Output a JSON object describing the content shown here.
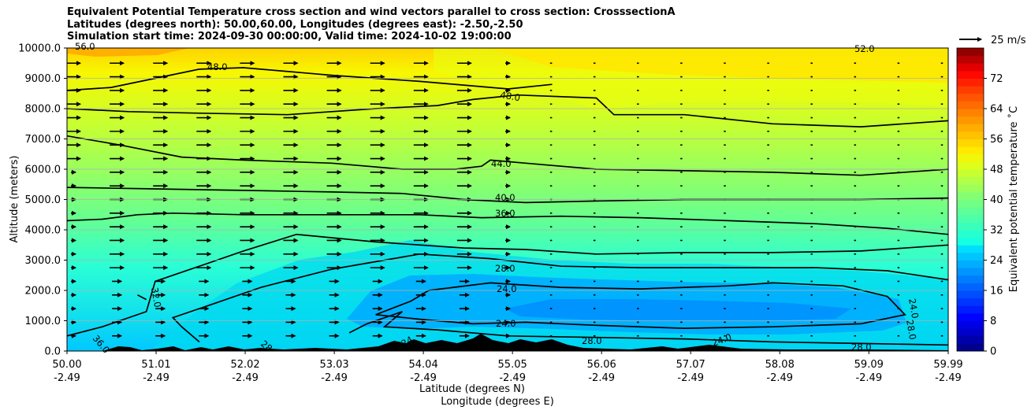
{
  "chart_data": {
    "type": "heatmap",
    "title_lines": [
      "Equivalent Potential Temperature cross section and wind vectors parallel to cross section: CrosssectionA",
      "Latitudes (degrees north): 50.00,60.00, Longitudes (degrees east): -2.50,-2.50",
      "Simulation start time: 2024-09-30 00:00:00, Valid time: 2024-10-02 19:00:00"
    ],
    "ylabel": "Altitude (meters)",
    "xlabel_lat": "Latitude (degrees N)",
    "xlabel_lon": "Longitude (degrees E)",
    "ylim": [
      0,
      10000
    ],
    "y_ticks": [
      "0.0",
      "1000.0",
      "2000.0",
      "3000.0",
      "4000.0",
      "5000.0",
      "6000.0",
      "7000.0",
      "8000.0",
      "9000.0",
      "10000.0"
    ],
    "y_tick_values": [
      0,
      1000,
      2000,
      3000,
      4000,
      5000,
      6000,
      7000,
      8000,
      9000,
      10000
    ],
    "x_tick_values": [
      50.0,
      51.01,
      52.02,
      53.03,
      54.04,
      55.05,
      56.06,
      57.07,
      58.08,
      59.09,
      59.99
    ],
    "x_ticks_lat": [
      "50.00",
      "51.01",
      "52.02",
      "53.03",
      "54.04",
      "55.05",
      "56.06",
      "57.07",
      "58.08",
      "59.09",
      "59.99"
    ],
    "x_ticks_lon": [
      "-2.49",
      "-2.49",
      "-2.49",
      "-2.49",
      "-2.49",
      "-2.49",
      "-2.49",
      "-2.49",
      "-2.49",
      "-2.49",
      "-2.49"
    ],
    "colorbar": {
      "label": "Equivalent potential temperature ˚C",
      "range": [
        0,
        80
      ],
      "ticks": [
        "0",
        "8",
        "16",
        "24",
        "32",
        "40",
        "48",
        "56",
        "64",
        "72"
      ],
      "tick_values": [
        0,
        8,
        16,
        24,
        32,
        40,
        48,
        56,
        64,
        72
      ],
      "colormap": "jet"
    },
    "wind_key": "25 m/s",
    "contours": [
      {
        "level": 24,
        "label": "24.0",
        "points": [
          [
            54.1,
            2000
          ],
          [
            54.8,
            2250
          ],
          [
            55.6,
            2100
          ],
          [
            56.5,
            2050
          ],
          [
            57.5,
            2150
          ],
          [
            58.0,
            2250
          ],
          [
            58.8,
            2150
          ],
          [
            59.3,
            1800
          ],
          [
            59.5,
            1200
          ],
          [
            59.0,
            900
          ],
          [
            58.0,
            800
          ],
          [
            57.0,
            750
          ],
          [
            56.0,
            850
          ],
          [
            55.2,
            950
          ],
          [
            54.6,
            900
          ],
          [
            54.0,
            1050
          ],
          [
            53.5,
            1200
          ],
          [
            53.9,
            1650
          ],
          [
            54.1,
            2000
          ]
        ]
      },
      {
        "level": 28,
        "label": "28.0",
        "points": [
          [
            51.5,
            300
          ],
          [
            51.3,
            800
          ],
          [
            51.2,
            1100
          ],
          [
            51.6,
            1500
          ],
          [
            52.2,
            2100
          ],
          [
            53.0,
            2700
          ],
          [
            54.0,
            3200
          ],
          [
            54.8,
            3050
          ],
          [
            55.6,
            2800
          ],
          [
            56.5,
            2750
          ],
          [
            57.5,
            2750
          ],
          [
            58.5,
            2750
          ],
          [
            59.3,
            2650
          ],
          [
            59.99,
            2350
          ]
        ]
      },
      {
        "level": 28,
        "label": "28.0",
        "points": [
          [
            53.2,
            600
          ],
          [
            53.4,
            900
          ],
          [
            53.8,
            1300
          ],
          [
            53.6,
            800
          ],
          [
            54.2,
            700
          ],
          [
            55.0,
            500
          ],
          [
            56.0,
            450
          ],
          [
            57.0,
            400
          ],
          [
            58.0,
            300
          ],
          [
            59.0,
            250
          ],
          [
            59.99,
            200
          ]
        ]
      },
      {
        "level": 32,
        "label": "32.0",
        "points": [
          [
            50.0,
            500
          ],
          [
            50.4,
            800
          ],
          [
            50.9,
            1300
          ],
          [
            51.0,
            2300
          ],
          [
            51.4,
            2700
          ],
          [
            52.0,
            3300
          ],
          [
            52.6,
            3850
          ],
          [
            53.5,
            3600
          ],
          [
            54.5,
            3400
          ],
          [
            55.2,
            3350
          ],
          [
            56.0,
            3200
          ],
          [
            57.0,
            3250
          ],
          [
            58.0,
            3250
          ],
          [
            59.0,
            3300
          ],
          [
            59.99,
            3500
          ]
        ]
      },
      {
        "level": 32,
        "label": "32.0",
        "points": [
          [
            50.8,
            1850
          ],
          [
            50.9,
            1700
          ]
        ]
      },
      {
        "level": 36,
        "label": "36.0",
        "points": [
          [
            50.0,
            4300
          ],
          [
            50.4,
            4350
          ],
          [
            50.8,
            4500
          ],
          [
            51.2,
            4550
          ],
          [
            52.0,
            4500
          ],
          [
            53.0,
            4500
          ],
          [
            54.0,
            4500
          ],
          [
            54.7,
            4400
          ],
          [
            55.6,
            4450
          ],
          [
            56.5,
            4400
          ],
          [
            57.5,
            4300
          ],
          [
            58.5,
            4200
          ],
          [
            59.3,
            4050
          ],
          [
            59.99,
            3850
          ]
        ]
      },
      {
        "level": 40,
        "label": "40.0",
        "points": [
          [
            50.0,
            5400
          ],
          [
            51.0,
            5350
          ],
          [
            52.0,
            5300
          ],
          [
            53.0,
            5250
          ],
          [
            53.8,
            5200
          ],
          [
            54.5,
            5000
          ],
          [
            55.2,
            4900
          ],
          [
            56.0,
            4950
          ],
          [
            57.0,
            5000
          ],
          [
            58.0,
            5000
          ],
          [
            59.0,
            5000
          ],
          [
            59.99,
            5050
          ]
        ]
      },
      {
        "level": 44,
        "label": "44.0",
        "points": [
          [
            50.0,
            7100
          ],
          [
            50.6,
            6800
          ],
          [
            51.3,
            6400
          ],
          [
            52.0,
            6300
          ],
          [
            53.0,
            6200
          ],
          [
            53.8,
            6000
          ],
          [
            54.4,
            6000
          ],
          [
            54.7,
            6100
          ],
          [
            54.8,
            6300
          ],
          [
            55.2,
            6200
          ],
          [
            56.0,
            6000
          ],
          [
            57.0,
            5950
          ],
          [
            58.0,
            5900
          ],
          [
            59.0,
            5800
          ],
          [
            59.99,
            6000
          ]
        ]
      },
      {
        "level": 48,
        "label": "48.0",
        "points": [
          [
            50.0,
            8000
          ],
          [
            50.7,
            7900
          ],
          [
            51.5,
            7850
          ],
          [
            52.5,
            7800
          ],
          [
            53.5,
            8000
          ],
          [
            54.2,
            8100
          ],
          [
            54.6,
            8300
          ],
          [
            55.1,
            8450
          ],
          [
            56.0,
            8350
          ],
          [
            56.2,
            7800
          ],
          [
            57.0,
            7800
          ],
          [
            58.0,
            7500
          ],
          [
            59.0,
            7400
          ],
          [
            59.99,
            7600
          ]
        ]
      },
      {
        "level": 48,
        "label": "48.0",
        "points": [
          [
            50.0,
            8600
          ],
          [
            50.5,
            8700
          ],
          [
            51.0,
            9000
          ],
          [
            51.5,
            9300
          ],
          [
            52.0,
            9350
          ],
          [
            53.0,
            9100
          ],
          [
            54.0,
            8900
          ],
          [
            54.6,
            8750
          ],
          [
            55.0,
            8650
          ],
          [
            55.5,
            8800
          ]
        ]
      }
    ],
    "inline_labels": [
      "48.0",
      "48.0",
      "44.0",
      "40.0",
      "36.0",
      "28.0",
      "24.0",
      "24.0",
      "32.0",
      "36.0",
      "28",
      "24",
      "28.0",
      "28.0",
      "24.0",
      "24.0",
      "28.0",
      "52.0",
      "56.0"
    ]
  }
}
